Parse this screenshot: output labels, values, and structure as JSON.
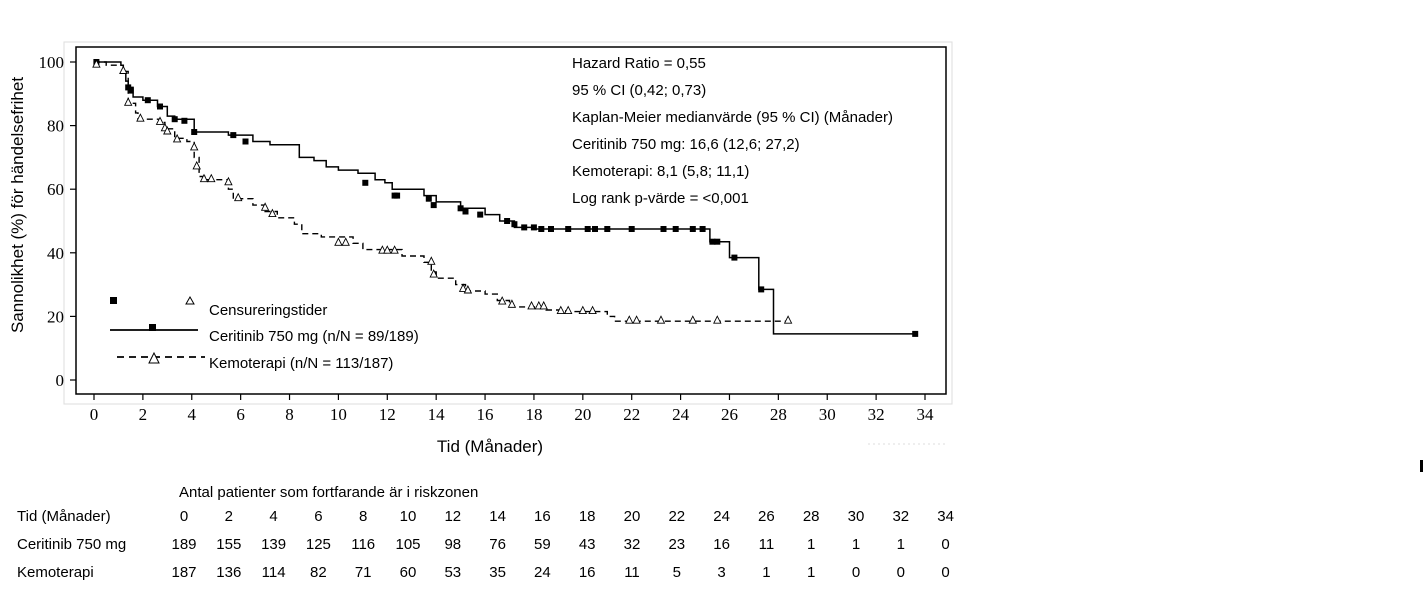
{
  "chart_data": {
    "type": "line",
    "subtype": "kaplan-meier",
    "title": "",
    "xlabel": "Tid (Månader)",
    "ylabel": "Sannolikhet (%) för händelsefrihet",
    "xlim": [
      0,
      34
    ],
    "ylim": [
      0,
      100
    ],
    "xticks": [
      0,
      2,
      4,
      6,
      8,
      10,
      12,
      14,
      16,
      18,
      20,
      22,
      24,
      26,
      28,
      30,
      32,
      34
    ],
    "yticks": [
      0,
      20,
      40,
      60,
      80,
      100
    ],
    "grid": false,
    "annotations": [
      "Hazard Ratio = 0,55",
      "95 % CI (0,42; 0,73)",
      "Kaplan-Meier medianvärde (95 % CI) (Månader)",
      "Ceritinib 750 mg: 16,6 (12,6; 27,2)",
      "Kemoterapi: 8,1 (5,8; 11,1)",
      "Log rank p-värde = <0,001"
    ],
    "legend": {
      "placement": "bottom-left",
      "censor_label": "Censureringstider",
      "entries": [
        "Ceritinib 750 mg (n/N = 89/189)",
        "Kemoterapi (n/N = 113/187)"
      ]
    },
    "series": [
      {
        "name": "Ceritinib 750 mg",
        "style": "solid",
        "marker": "square",
        "steps": [
          [
            0,
            100
          ],
          [
            1.1,
            99
          ],
          [
            1.2,
            97
          ],
          [
            1.3,
            94
          ],
          [
            1.4,
            92
          ],
          [
            1.6,
            89
          ],
          [
            2.0,
            88
          ],
          [
            2.6,
            86
          ],
          [
            3.0,
            83
          ],
          [
            3.3,
            82
          ],
          [
            4.1,
            78
          ],
          [
            5.5,
            77
          ],
          [
            6.5,
            75
          ],
          [
            7.2,
            74
          ],
          [
            8.4,
            70
          ],
          [
            9.0,
            69
          ],
          [
            9.5,
            67
          ],
          [
            10.0,
            66
          ],
          [
            10.8,
            65
          ],
          [
            11.5,
            63
          ],
          [
            11.9,
            62
          ],
          [
            12.2,
            60
          ],
          [
            13.5,
            58
          ],
          [
            14.0,
            56
          ],
          [
            15.0,
            54
          ],
          [
            16.0,
            52
          ],
          [
            16.6,
            50
          ],
          [
            17.2,
            48
          ],
          [
            18.0,
            47.5
          ],
          [
            25.2,
            43.5
          ],
          [
            26.0,
            38.5
          ],
          [
            27.2,
            28.5
          ],
          [
            27.8,
            14.5
          ],
          [
            33.6,
            14.5
          ]
        ],
        "censors": [
          [
            0.1,
            100
          ],
          [
            1.4,
            92
          ],
          [
            1.5,
            91
          ],
          [
            2.2,
            88
          ],
          [
            2.7,
            86
          ],
          [
            3.3,
            82
          ],
          [
            3.7,
            81.5
          ],
          [
            4.1,
            78
          ],
          [
            5.7,
            77
          ],
          [
            6.2,
            75
          ],
          [
            11.1,
            62
          ],
          [
            12.3,
            58
          ],
          [
            12.4,
            58
          ],
          [
            13.7,
            57
          ],
          [
            13.9,
            55
          ],
          [
            15.0,
            54
          ],
          [
            15.2,
            53
          ],
          [
            15.8,
            52
          ],
          [
            16.9,
            50
          ],
          [
            17.2,
            49
          ],
          [
            17.6,
            48
          ],
          [
            18.0,
            48
          ],
          [
            18.3,
            47.5
          ],
          [
            18.7,
            47.5
          ],
          [
            19.4,
            47.5
          ],
          [
            20.2,
            47.5
          ],
          [
            20.5,
            47.5
          ],
          [
            21.0,
            47.5
          ],
          [
            22.0,
            47.5
          ],
          [
            23.3,
            47.5
          ],
          [
            23.8,
            47.5
          ],
          [
            24.5,
            47.5
          ],
          [
            24.9,
            47.5
          ],
          [
            25.3,
            43.5
          ],
          [
            25.5,
            43.5
          ],
          [
            26.2,
            38.5
          ],
          [
            27.3,
            28.5
          ],
          [
            33.6,
            14.5
          ]
        ],
        "at_risk": [
          189,
          155,
          139,
          125,
          116,
          105,
          98,
          76,
          59,
          43,
          32,
          23,
          16,
          11,
          1,
          1,
          1,
          0
        ]
      },
      {
        "name": "Kemoterapi",
        "style": "dashed",
        "marker": "triangle",
        "steps": [
          [
            0,
            100
          ],
          [
            0.5,
            99
          ],
          [
            1.2,
            97
          ],
          [
            1.4,
            87
          ],
          [
            1.7,
            84
          ],
          [
            1.8,
            82
          ],
          [
            2.7,
            81
          ],
          [
            2.9,
            79
          ],
          [
            3.3,
            76
          ],
          [
            3.8,
            75
          ],
          [
            4.1,
            70
          ],
          [
            4.3,
            64
          ],
          [
            4.6,
            63
          ],
          [
            5.5,
            60
          ],
          [
            5.7,
            57
          ],
          [
            6.5,
            55
          ],
          [
            7.0,
            53
          ],
          [
            7.5,
            51
          ],
          [
            8.2,
            49
          ],
          [
            8.5,
            46
          ],
          [
            9.3,
            45
          ],
          [
            10.6,
            43
          ],
          [
            11.0,
            41
          ],
          [
            12.6,
            39
          ],
          [
            13.5,
            37
          ],
          [
            13.8,
            34
          ],
          [
            14.0,
            32
          ],
          [
            14.8,
            30
          ],
          [
            15.2,
            28
          ],
          [
            16.0,
            27
          ],
          [
            16.5,
            25
          ],
          [
            17.0,
            23
          ],
          [
            18.5,
            22
          ],
          [
            19.3,
            21.5
          ],
          [
            21.0,
            20
          ],
          [
            21.3,
            18.5
          ],
          [
            28.4,
            18.5
          ]
        ],
        "censors": [
          [
            0.1,
            99
          ],
          [
            1.2,
            97
          ],
          [
            1.4,
            87
          ],
          [
            1.9,
            82
          ],
          [
            2.7,
            81
          ],
          [
            2.9,
            79
          ],
          [
            3.0,
            78
          ],
          [
            3.4,
            75.5
          ],
          [
            4.1,
            73
          ],
          [
            4.2,
            67
          ],
          [
            4.5,
            63
          ],
          [
            4.8,
            63
          ],
          [
            5.5,
            62
          ],
          [
            5.9,
            57
          ],
          [
            7.0,
            54
          ],
          [
            7.3,
            52
          ],
          [
            10.0,
            43
          ],
          [
            10.3,
            43
          ],
          [
            11.8,
            40.5
          ],
          [
            12.0,
            40.5
          ],
          [
            12.3,
            40.5
          ],
          [
            13.8,
            37
          ],
          [
            13.9,
            33
          ],
          [
            15.1,
            28.5
          ],
          [
            15.3,
            28
          ],
          [
            16.7,
            24.5
          ],
          [
            17.1,
            23.5
          ],
          [
            17.9,
            23
          ],
          [
            18.2,
            23
          ],
          [
            18.4,
            23
          ],
          [
            19.1,
            21.5
          ],
          [
            19.4,
            21.5
          ],
          [
            20.0,
            21.5
          ],
          [
            20.4,
            21.5
          ],
          [
            21.9,
            18.5
          ],
          [
            22.2,
            18.5
          ],
          [
            23.2,
            18.5
          ],
          [
            24.5,
            18.5
          ],
          [
            25.5,
            18.5
          ],
          [
            28.4,
            18.5
          ]
        ],
        "at_risk": [
          187,
          136,
          114,
          82,
          71,
          60,
          53,
          35,
          24,
          16,
          11,
          5,
          3,
          1,
          1,
          0,
          0,
          0
        ]
      }
    ],
    "risk_table": {
      "title": "Antal patienter som fortfarande är i riskzonen",
      "time_label": "Tid (Månader)",
      "times": [
        0,
        2,
        4,
        6,
        8,
        10,
        12,
        14,
        16,
        18,
        20,
        22,
        24,
        26,
        28,
        30,
        32,
        34
      ],
      "rows": [
        {
          "label": "Ceritinib 750 mg",
          "values": [
            189,
            155,
            139,
            125,
            116,
            105,
            98,
            76,
            59,
            43,
            32,
            23,
            16,
            11,
            1,
            1,
            1,
            0
          ]
        },
        {
          "label": "Kemoterapi",
          "values": [
            187,
            136,
            114,
            82,
            71,
            60,
            53,
            35,
            24,
            16,
            11,
            5,
            3,
            1,
            1,
            0,
            0,
            0
          ]
        }
      ]
    }
  }
}
